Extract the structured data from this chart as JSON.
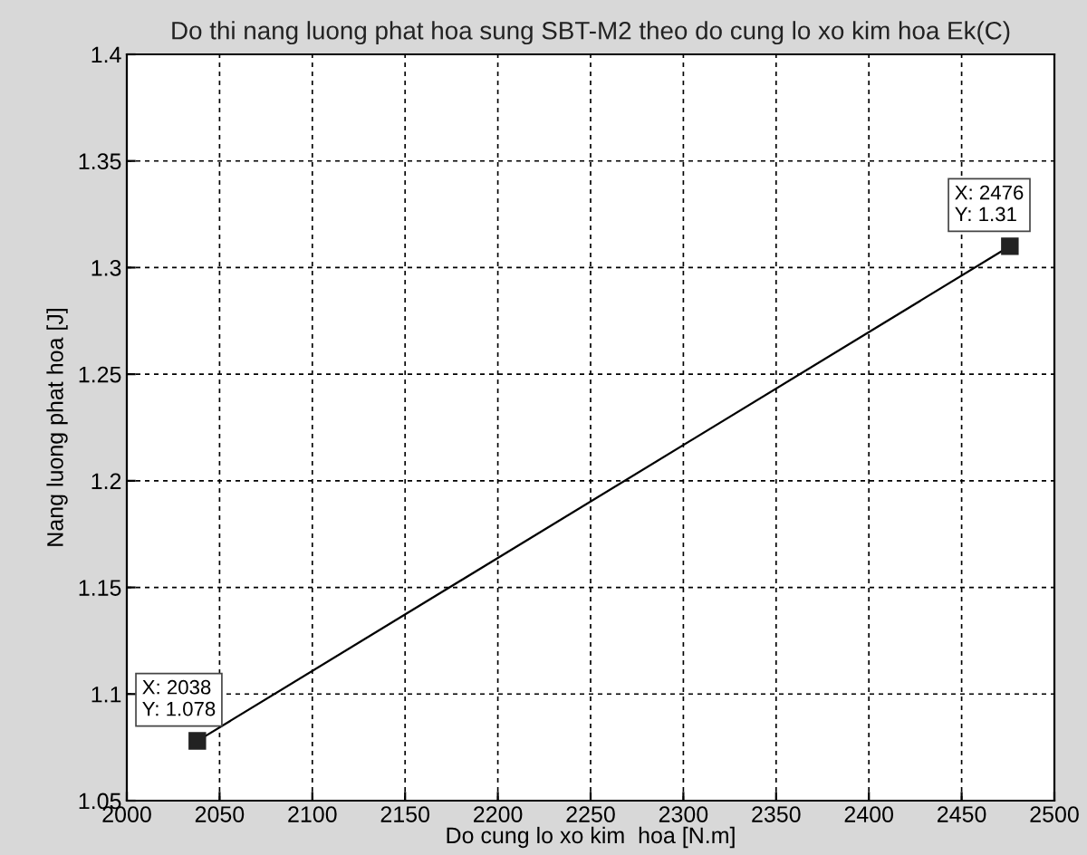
{
  "chart_data": {
    "type": "line",
    "title": "Do thi nang luong phat hoa sung SBT-M2 theo do cung lo xo kim hoa Ek(C)",
    "xlabel": "Do cung lo xo kim  hoa [N.m]",
    "ylabel": "Nang luong phat hoa [J]",
    "x": [
      2038,
      2476
    ],
    "series": [
      {
        "color": "#000000",
        "values": [
          1.078,
          1.31
        ]
      }
    ],
    "annotations": [
      {
        "text": "X: 2038\nY: 1.078",
        "x": 2038,
        "y": 1.078
      },
      {
        "text": "X: 2476\nY: 1.31",
        "x": 2476,
        "y": 1.31
      }
    ],
    "xlim": [
      2000,
      2500
    ],
    "xticks": [
      2000,
      2050,
      2100,
      2150,
      2200,
      2250,
      2300,
      2350,
      2400,
      2450,
      2500
    ],
    "ylim": [
      1.05,
      1.4
    ],
    "yticks": [
      1.05,
      1.1,
      1.15,
      1.2,
      1.25,
      1.3,
      1.35,
      1.4
    ],
    "grid": true,
    "marker": "square",
    "line_style": "solid",
    "legend": false
  }
}
